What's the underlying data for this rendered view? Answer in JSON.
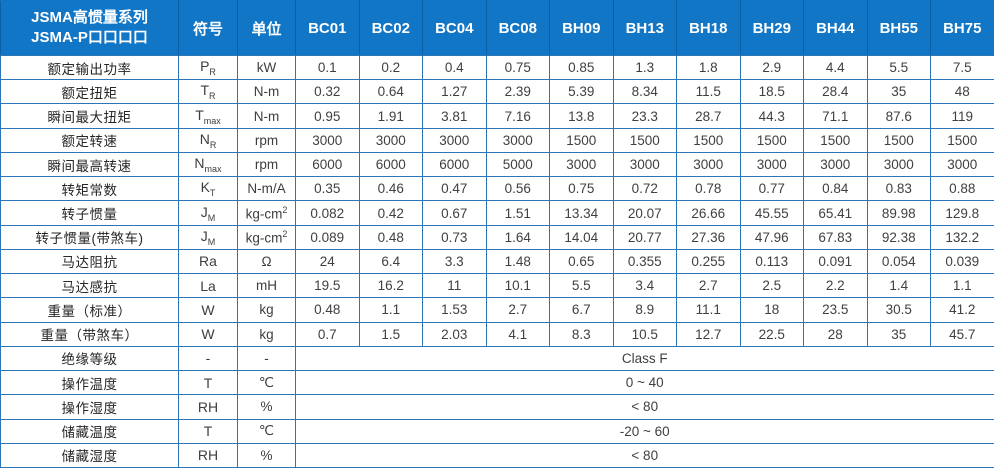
{
  "colors": {
    "header_bg": "#1176c6",
    "header_divider": "#0d5fa6",
    "grid_border": "#2e75b6",
    "header_text": "#ffffff",
    "body_text": "#404040"
  },
  "table": {
    "header": {
      "title_line1": "JSMA高惯量系列",
      "title_line2": "JSMA-P口口口口",
      "symbol_col": "符号",
      "unit_col": "单位",
      "models": [
        "BC01",
        "BC02",
        "BC04",
        "BC08",
        "BH09",
        "BH13",
        "BH18",
        "BH29",
        "BH44",
        "BH55",
        "BH75"
      ]
    },
    "rows": [
      {
        "label": "额定输出功率",
        "symbol": "P",
        "sub": "R",
        "unit": "kW",
        "values": [
          "0.1",
          "0.2",
          "0.4",
          "0.75",
          "0.85",
          "1.3",
          "1.8",
          "2.9",
          "4.4",
          "5.5",
          "7.5"
        ]
      },
      {
        "label": "额定扭矩",
        "symbol": "T",
        "sub": "R",
        "unit": "N-m",
        "values": [
          "0.32",
          "0.64",
          "1.27",
          "2.39",
          "5.39",
          "8.34",
          "11.5",
          "18.5",
          "28.4",
          "35",
          "48"
        ]
      },
      {
        "label": "瞬间最大扭矩",
        "symbol": "T",
        "sub": "max",
        "unit": "N-m",
        "values": [
          "0.95",
          "1.91",
          "3.81",
          "7.16",
          "13.8",
          "23.3",
          "28.7",
          "44.3",
          "71.1",
          "87.6",
          "119"
        ]
      },
      {
        "label": "额定转速",
        "symbol": "N",
        "sub": "R",
        "unit": "rpm",
        "values": [
          "3000",
          "3000",
          "3000",
          "3000",
          "1500",
          "1500",
          "1500",
          "1500",
          "1500",
          "1500",
          "1500"
        ]
      },
      {
        "label": "瞬间最高转速",
        "symbol": "N",
        "sub": "max",
        "unit": "rpm",
        "values": [
          "6000",
          "6000",
          "6000",
          "5000",
          "3000",
          "3000",
          "3000",
          "3000",
          "3000",
          "3000",
          "3000"
        ]
      },
      {
        "label": "转矩常数",
        "symbol": "K",
        "sub": "T",
        "unit": "N-m/A",
        "values": [
          "0.35",
          "0.46",
          "0.47",
          "0.56",
          "0.75",
          "0.72",
          "0.78",
          "0.77",
          "0.84",
          "0.83",
          "0.88"
        ]
      },
      {
        "label": "转子惯量",
        "symbol": "J",
        "sub": "M",
        "unit": "kg-cm",
        "unit_sup": "2",
        "values": [
          "0.082",
          "0.42",
          "0.67",
          "1.51",
          "13.34",
          "20.07",
          "26.66",
          "45.55",
          "65.41",
          "89.98",
          "129.8"
        ]
      },
      {
        "label": "转子惯量(带煞车)",
        "symbol": "J",
        "sub": "M",
        "unit": "kg-cm",
        "unit_sup": "2",
        "values": [
          "0.089",
          "0.48",
          "0.73",
          "1.64",
          "14.04",
          "20.77",
          "27.36",
          "47.96",
          "67.83",
          "92.38",
          "132.2"
        ]
      },
      {
        "label": "马达阻抗",
        "symbol": "Ra",
        "sub": "",
        "unit": "Ω",
        "values": [
          "24",
          "6.4",
          "3.3",
          "1.48",
          "0.65",
          "0.355",
          "0.255",
          "0.113",
          "0.091",
          "0.054",
          "0.039"
        ]
      },
      {
        "label": "马达感抗",
        "symbol": "La",
        "sub": "",
        "unit": "mH",
        "values": [
          "19.5",
          "16.2",
          "11",
          "10.1",
          "5.5",
          "3.4",
          "2.7",
          "2.5",
          "2.2",
          "1.4",
          "1.1"
        ]
      },
      {
        "label": "重量（标准）",
        "symbol": "W",
        "sub": "",
        "unit": "kg",
        "values": [
          "0.48",
          "1.1",
          "1.53",
          "2.7",
          "6.7",
          "8.9",
          "11.1",
          "18",
          "23.5",
          "30.5",
          "41.2"
        ]
      },
      {
        "label": "重量（带煞车）",
        "symbol": "W",
        "sub": "",
        "unit": "kg",
        "values": [
          "0.7",
          "1.5",
          "2.03",
          "4.1",
          "8.3",
          "10.5",
          "12.7",
          "22.5",
          "28",
          "35",
          "45.7"
        ]
      },
      {
        "label": "绝缘等级",
        "symbol": "-",
        "sub": "",
        "unit": "-",
        "span": "Class F"
      },
      {
        "label": "操作温度",
        "symbol": "T",
        "sub": "",
        "unit": "℃",
        "span": "0 ~ 40"
      },
      {
        "label": "操作湿度",
        "symbol": "RH",
        "sub": "",
        "unit": "%",
        "span": "< 80"
      },
      {
        "label": "储藏温度",
        "symbol": "T",
        "sub": "",
        "unit": "℃",
        "span": "-20 ~ 60"
      },
      {
        "label": "储藏湿度",
        "symbol": "RH",
        "sub": "",
        "unit": "%",
        "span": "< 80"
      }
    ]
  }
}
